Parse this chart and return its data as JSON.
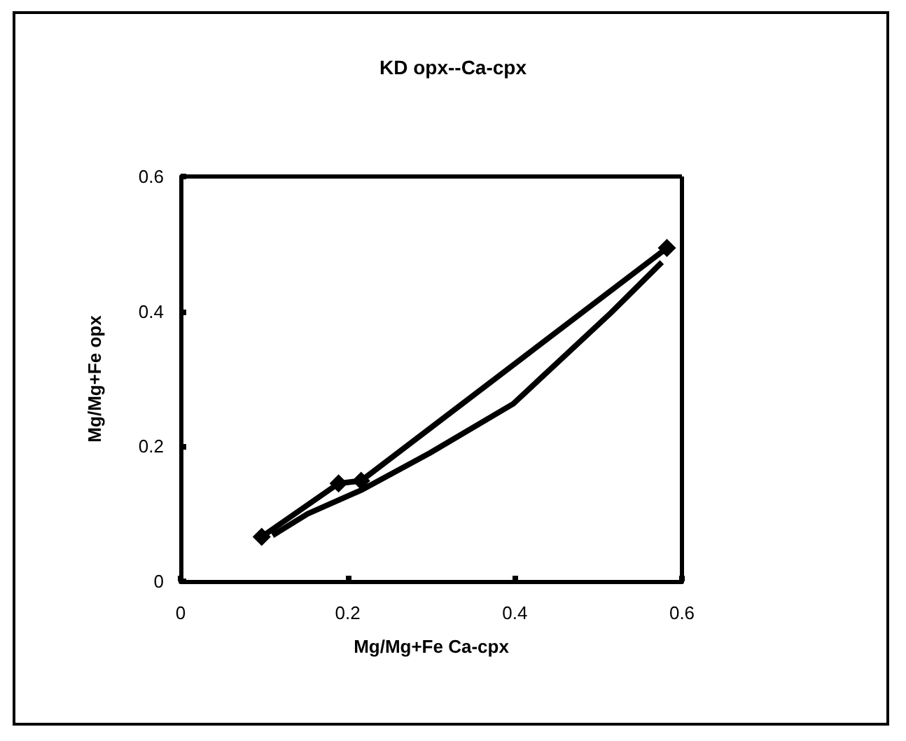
{
  "chart_data": {
    "type": "line",
    "title": "KD opx--Ca-cpx",
    "xlabel": "Mg/Mg+Fe Ca-cpx",
    "ylabel": "Mg/Mg+Fe opx",
    "xlim": [
      0,
      0.6
    ],
    "xticks": [
      0,
      0.2,
      0.4,
      0.6
    ],
    "ylim": [
      0,
      0.6
    ],
    "yticks": [
      0,
      0.2,
      0.4,
      0.6
    ],
    "grid": false,
    "series": [
      {
        "color": "#000000",
        "marker": "diamond",
        "x": [
          0.097,
          0.189,
          0.216,
          0.582
        ],
        "values": [
          0.066,
          0.145,
          0.149,
          0.494
        ]
      },
      {
        "color": "#000000",
        "marker": "none",
        "x": [
          0.11,
          0.152,
          0.216,
          0.298,
          0.398,
          0.515,
          0.576
        ],
        "values": [
          0.068,
          0.1,
          0.135,
          0.19,
          0.263,
          0.398,
          0.473
        ]
      }
    ]
  }
}
